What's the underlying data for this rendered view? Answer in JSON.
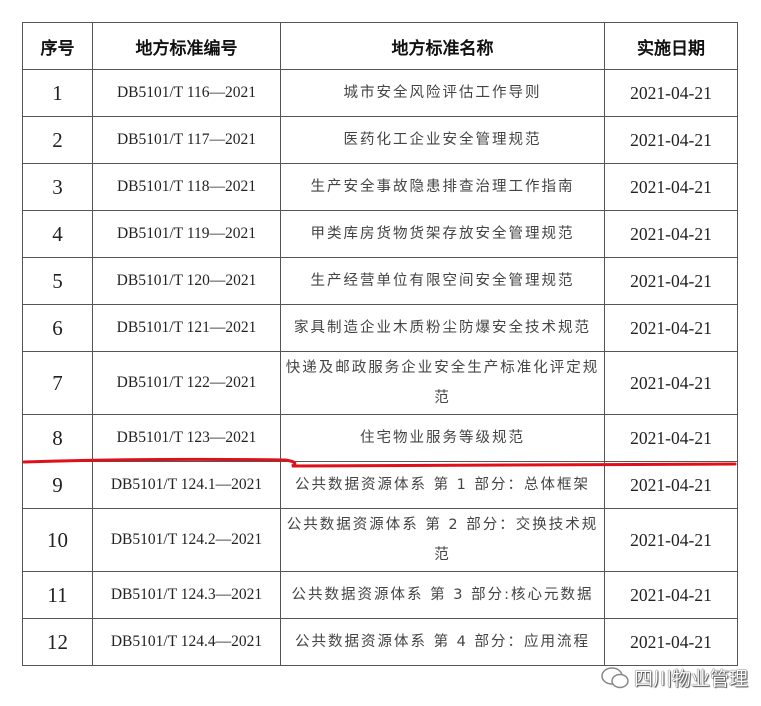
{
  "headers": [
    "序号",
    "地方标准编号",
    "地方标准名称",
    "实施日期"
  ],
  "rows": [
    {
      "no": "1",
      "code": "DB5101/T 116—2021",
      "name": "城市安全风险评估工作导则",
      "date": "2021-04-21"
    },
    {
      "no": "2",
      "code": "DB5101/T 117—2021",
      "name": "医药化工企业安全管理规范",
      "date": "2021-04-21"
    },
    {
      "no": "3",
      "code": "DB5101/T 118—2021",
      "name": "生产安全事故隐患排查治理工作指南",
      "date": "2021-04-21"
    },
    {
      "no": "4",
      "code": "DB5101/T 119—2021",
      "name": "甲类库房货物货架存放安全管理规范",
      "date": "2021-04-21"
    },
    {
      "no": "5",
      "code": "DB5101/T 120—2021",
      "name": "生产经营单位有限空间安全管理规范",
      "date": "2021-04-21"
    },
    {
      "no": "6",
      "code": "DB5101/T 121—2021",
      "name": "家具制造企业木质粉尘防爆安全技术规范",
      "date": "2021-04-21"
    },
    {
      "no": "7",
      "code": "DB5101/T 122—2021",
      "name": "快递及邮政服务企业安全生产标准化评定规范",
      "date": "2021-04-21"
    },
    {
      "no": "8",
      "code": "DB5101/T 123—2021",
      "name": "住宅物业服务等级规范",
      "date": "2021-04-21"
    },
    {
      "no": "9",
      "code": "DB5101/T 124.1—2021",
      "name": "公共数据资源体系 第 1 部分：总体框架",
      "date": "2021-04-21"
    },
    {
      "no": "10",
      "code": "DB5101/T 124.2—2021",
      "name": "公共数据资源体系 第 2 部分：交换技术规范",
      "date": "2021-04-21"
    },
    {
      "no": "11",
      "code": "DB5101/T 124.3—2021",
      "name": "公共数据资源体系 第 3 部分:核心元数据",
      "date": "2021-04-21"
    },
    {
      "no": "12",
      "code": "DB5101/T 124.4—2021",
      "name": "公共数据资源体系 第 4 部分：应用流程",
      "date": "2021-04-21"
    }
  ],
  "watermark": "四川物业管理",
  "annotation_color": "#e0101a"
}
